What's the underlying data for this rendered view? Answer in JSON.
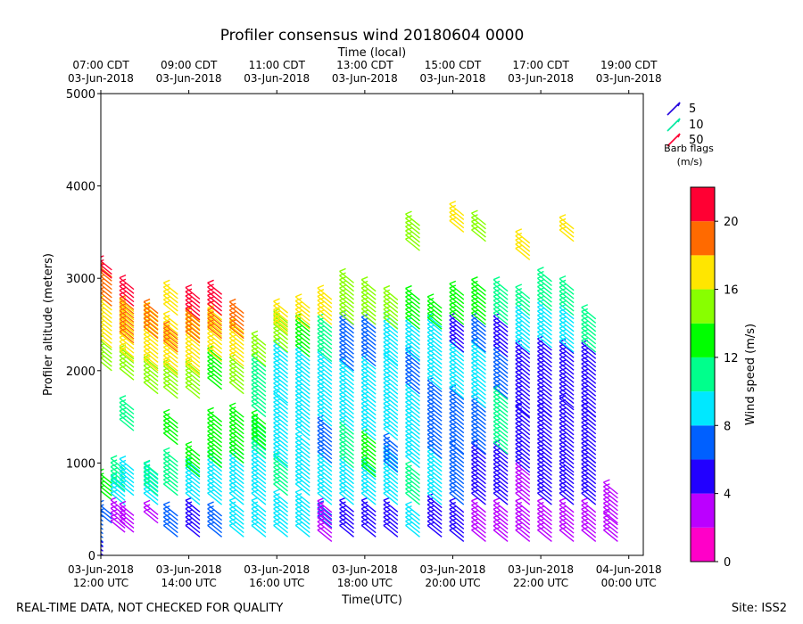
{
  "chart_data": {
    "type": "scatter",
    "subtype": "wind-barb profile time series",
    "title": "Profiler consensus wind 20180604 0000",
    "top_axis_label": "Time (local)",
    "xlabel": "Time(UTC)",
    "ylabel": "Profiler altitude (meters)",
    "ylim": [
      0,
      5000
    ],
    "yticks": [
      "0",
      "1000",
      "2000",
      "3000",
      "4000",
      "5000"
    ],
    "xlim_hours_utc": [
      12,
      24.33
    ],
    "bottom_ticks": [
      {
        "hour": 12,
        "line1": "03-Jun-2018",
        "line2": "12:00 UTC"
      },
      {
        "hour": 14,
        "line1": "03-Jun-2018",
        "line2": "14:00 UTC"
      },
      {
        "hour": 16,
        "line1": "03-Jun-2018",
        "line2": "16:00 UTC"
      },
      {
        "hour": 18,
        "line1": "03-Jun-2018",
        "line2": "18:00 UTC"
      },
      {
        "hour": 20,
        "line1": "03-Jun-2018",
        "line2": "20:00 UTC"
      },
      {
        "hour": 22,
        "line1": "03-Jun-2018",
        "line2": "22:00 UTC"
      },
      {
        "hour": 24,
        "line1": "04-Jun-2018",
        "line2": "00:00 UTC"
      }
    ],
    "top_ticks": [
      {
        "hour": 12,
        "line1": "07:00 CDT",
        "line2": "03-Jun-2018"
      },
      {
        "hour": 14,
        "line1": "09:00 CDT",
        "line2": "03-Jun-2018"
      },
      {
        "hour": 16,
        "line1": "11:00 CDT",
        "line2": "03-Jun-2018"
      },
      {
        "hour": 18,
        "line1": "13:00 CDT",
        "line2": "03-Jun-2018"
      },
      {
        "hour": 20,
        "line1": "15:00 CDT",
        "line2": "03-Jun-2018"
      },
      {
        "hour": 22,
        "line1": "17:00 CDT",
        "line2": "03-Jun-2018"
      },
      {
        "hour": 24,
        "line1": "19:00 CDT",
        "line2": "03-Jun-2018"
      }
    ],
    "barb_legend": {
      "title_line1": "Barb flags",
      "title_line2": "(m/s)",
      "entries": [
        {
          "label": "5",
          "color": "#2200dd"
        },
        {
          "label": "10",
          "color": "#00e8a0"
        },
        {
          "label": "50",
          "color": "#ff0033"
        }
      ]
    },
    "colorbar": {
      "label": "Wind speed (m/s)",
      "min": 0,
      "max": 22,
      "tick_values": [
        0,
        4,
        8,
        12,
        16,
        20
      ],
      "tick_labels": [
        "0",
        "4",
        "8",
        "12",
        "16",
        "20"
      ],
      "bins": [
        {
          "from": 0,
          "to": 2,
          "color": "#ff00c8"
        },
        {
          "from": 2,
          "to": 4,
          "color": "#bb00ff"
        },
        {
          "from": 4,
          "to": 6,
          "color": "#2200ff"
        },
        {
          "from": 6,
          "to": 8,
          "color": "#0060ff"
        },
        {
          "from": 8,
          "to": 10,
          "color": "#00e8ff"
        },
        {
          "from": 10,
          "to": 12,
          "color": "#00ff8c"
        },
        {
          "from": 12,
          "to": 14,
          "color": "#00ff00"
        },
        {
          "from": 14,
          "to": 16,
          "color": "#88ff00"
        },
        {
          "from": 16,
          "to": 18,
          "color": "#ffe600"
        },
        {
          "from": 18,
          "to": 20,
          "color": "#ff6a00"
        },
        {
          "from": 20,
          "to": 22,
          "color": "#ff0033"
        }
      ]
    },
    "profiles": [
      {
        "hour": 12.05,
        "segments": [
          [
            100,
            500,
            7
          ],
          [
            0,
            150,
            5
          ]
        ]
      },
      {
        "hour": 12.25,
        "segments": [
          [
            350,
            450,
            6
          ],
          [
            600,
            800,
            12
          ],
          [
            2000,
            2250,
            15
          ],
          [
            2250,
            2700,
            17
          ],
          [
            2700,
            3050,
            19
          ],
          [
            3000,
            3100,
            21
          ]
        ]
      },
      {
        "hour": 12.55,
        "segments": [
          [
            250,
            500,
            2
          ],
          [
            550,
            750,
            9
          ],
          [
            700,
            950,
            10
          ]
        ]
      },
      {
        "hour": 12.75,
        "segments": [
          [
            250,
            450,
            3
          ],
          [
            650,
            950,
            9
          ],
          [
            1350,
            1600,
            11
          ],
          [
            1900,
            2150,
            15
          ],
          [
            2100,
            2650,
            17
          ],
          [
            2300,
            2700,
            19
          ],
          [
            2700,
            2900,
            20
          ]
        ]
      },
      {
        "hour": 13.3,
        "segments": [
          [
            350,
            450,
            2
          ],
          [
            550,
            900,
            9
          ],
          [
            650,
            900,
            11
          ],
          [
            1750,
            2050,
            14
          ],
          [
            2000,
            2600,
            17
          ],
          [
            2350,
            2650,
            19
          ]
        ]
      },
      {
        "hour": 13.75,
        "segments": [
          [
            200,
            450,
            6
          ],
          [
            650,
            1050,
            10
          ],
          [
            1200,
            1450,
            13
          ],
          [
            1700,
            2000,
            14
          ],
          [
            1950,
            2500,
            17
          ],
          [
            2200,
            2400,
            19
          ],
          [
            2600,
            2850,
            17
          ]
        ]
      },
      {
        "hour": 14.25,
        "segments": [
          [
            200,
            500,
            5
          ],
          [
            550,
            950,
            9
          ],
          [
            850,
            1100,
            13
          ],
          [
            1700,
            2000,
            14
          ],
          [
            1950,
            2550,
            17
          ],
          [
            2300,
            2550,
            19
          ],
          [
            2550,
            2800,
            21
          ]
        ]
      },
      {
        "hour": 14.75,
        "segments": [
          [
            200,
            450,
            6
          ],
          [
            550,
            1000,
            8
          ],
          [
            950,
            1450,
            12
          ],
          [
            1800,
            2150,
            13
          ],
          [
            2100,
            2600,
            17
          ],
          [
            2350,
            2550,
            19
          ],
          [
            2600,
            2850,
            21
          ]
        ]
      },
      {
        "hour": 15.25,
        "segments": [
          [
            200,
            500,
            9
          ],
          [
            550,
            1100,
            9
          ],
          [
            1000,
            1500,
            12
          ],
          [
            1750,
            2050,
            15
          ],
          [
            2050,
            2450,
            17
          ],
          [
            2350,
            2650,
            19
          ]
        ]
      },
      {
        "hour": 15.75,
        "segments": [
          [
            200,
            500,
            9
          ],
          [
            550,
            1150,
            9
          ],
          [
            1050,
            1400,
            11
          ],
          [
            1150,
            1450,
            13
          ],
          [
            1500,
            2050,
            11
          ],
          [
            2050,
            2300,
            14
          ]
        ]
      },
      {
        "hour": 16.25,
        "segments": [
          [
            200,
            600,
            9
          ],
          [
            650,
            1000,
            11
          ],
          [
            950,
            1650,
            9
          ],
          [
            1650,
            2200,
            9
          ],
          [
            2200,
            2550,
            15
          ],
          [
            2400,
            2650,
            16
          ]
        ]
      },
      {
        "hour": 16.75,
        "segments": [
          [
            200,
            600,
            9
          ],
          [
            650,
            1200,
            9
          ],
          [
            1250,
            1700,
            9
          ],
          [
            1700,
            2150,
            9
          ],
          [
            2150,
            2500,
            12
          ],
          [
            2450,
            2700,
            16
          ]
        ]
      },
      {
        "hour": 17.25,
        "segments": [
          [
            300,
            450,
            7
          ],
          [
            150,
            500,
            3
          ],
          [
            550,
            1000,
            8
          ],
          [
            1000,
            1400,
            6
          ],
          [
            1400,
            2100,
            9
          ],
          [
            2100,
            2500,
            10
          ],
          [
            2500,
            2800,
            17
          ]
        ]
      },
      {
        "hour": 17.75,
        "segments": [
          [
            200,
            500,
            5
          ],
          [
            550,
            950,
            9
          ],
          [
            950,
            1350,
            10
          ],
          [
            1350,
            2000,
            8
          ],
          [
            2000,
            2500,
            6
          ],
          [
            2500,
            2950,
            15
          ]
        ]
      },
      {
        "hour": 18.25,
        "segments": [
          [
            200,
            500,
            5
          ],
          [
            550,
            950,
            8
          ],
          [
            850,
            1250,
            12
          ],
          [
            1250,
            2050,
            8
          ],
          [
            2050,
            2500,
            6
          ],
          [
            2500,
            2900,
            14
          ]
        ]
      },
      {
        "hour": 18.75,
        "segments": [
          [
            200,
            500,
            5
          ],
          [
            550,
            1050,
            9
          ],
          [
            900,
            1200,
            6
          ],
          [
            1250,
            2100,
            9
          ],
          [
            2050,
            2500,
            8
          ],
          [
            2450,
            2800,
            14
          ]
        ]
      },
      {
        "hour": 19.25,
        "segments": [
          [
            200,
            450,
            8
          ],
          [
            550,
            900,
            10
          ],
          [
            950,
            1750,
            9
          ],
          [
            1750,
            2150,
            6
          ],
          [
            2100,
            2450,
            8
          ],
          [
            2450,
            2800,
            13
          ],
          [
            3300,
            3600,
            14
          ]
        ]
      },
      {
        "hour": 19.75,
        "segments": [
          [
            200,
            550,
            5
          ],
          [
            550,
            1050,
            9
          ],
          [
            1050,
            1800,
            6
          ],
          [
            1800,
            2200,
            9
          ],
          [
            2200,
            2500,
            8
          ],
          [
            2450,
            2700,
            13
          ]
        ]
      },
      {
        "hour": 20.25,
        "segments": [
          [
            150,
            500,
            5
          ],
          [
            550,
            1100,
            6
          ],
          [
            1100,
            1700,
            6
          ],
          [
            1700,
            2200,
            8
          ],
          [
            2200,
            2500,
            5
          ],
          [
            2500,
            2850,
            12
          ],
          [
            3500,
            3700,
            16
          ]
        ]
      },
      {
        "hour": 20.75,
        "segments": [
          [
            150,
            500,
            3
          ],
          [
            550,
            1100,
            5
          ],
          [
            1100,
            1600,
            6
          ],
          [
            1600,
            2200,
            8
          ],
          [
            2200,
            2500,
            6
          ],
          [
            2500,
            2900,
            13
          ],
          [
            3400,
            3600,
            14
          ]
        ]
      },
      {
        "hour": 21.25,
        "segments": [
          [
            150,
            500,
            3
          ],
          [
            550,
            1100,
            5
          ],
          [
            1100,
            1700,
            10
          ],
          [
            1700,
            2150,
            7
          ],
          [
            2150,
            2500,
            5
          ],
          [
            2500,
            2900,
            10
          ]
        ]
      },
      {
        "hour": 21.75,
        "segments": [
          [
            150,
            500,
            2
          ],
          [
            550,
            900,
            3
          ],
          [
            900,
            1500,
            5
          ],
          [
            1500,
            2200,
            4
          ],
          [
            2200,
            2600,
            8
          ],
          [
            2600,
            2800,
            11
          ],
          [
            3200,
            3400,
            16
          ]
        ]
      },
      {
        "hour": 22.25,
        "segments": [
          [
            150,
            500,
            2
          ],
          [
            550,
            1000,
            5
          ],
          [
            1000,
            1500,
            5
          ],
          [
            1500,
            2250,
            5
          ],
          [
            2250,
            2650,
            9
          ],
          [
            2650,
            3000,
            11
          ]
        ]
      },
      {
        "hour": 22.75,
        "segments": [
          [
            150,
            500,
            3
          ],
          [
            550,
            900,
            5
          ],
          [
            900,
            1600,
            5
          ],
          [
            1600,
            2200,
            5
          ],
          [
            2200,
            2600,
            9
          ],
          [
            2600,
            2900,
            10
          ],
          [
            3400,
            3550,
            16
          ]
        ]
      },
      {
        "hour": 23.25,
        "segments": [
          [
            150,
            500,
            3
          ],
          [
            550,
            1000,
            5
          ],
          [
            1000,
            1500,
            5
          ],
          [
            1500,
            2200,
            5
          ],
          [
            2200,
            2600,
            10
          ]
        ]
      },
      {
        "hour": 23.75,
        "segments": [
          [
            150,
            350,
            2
          ],
          [
            350,
            700,
            3
          ]
        ]
      }
    ]
  },
  "footer": {
    "left": "REAL-TIME DATA, NOT CHECKED FOR QUALITY",
    "right": "Site: ISS2"
  }
}
